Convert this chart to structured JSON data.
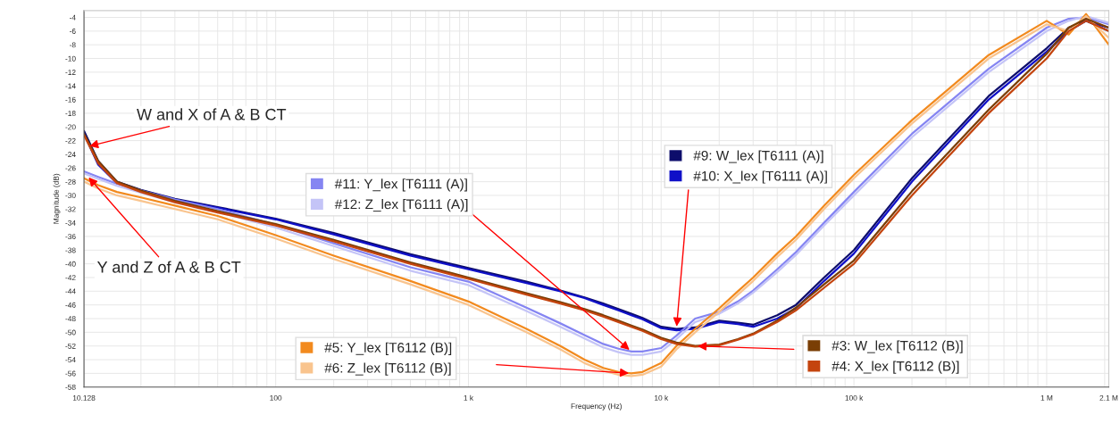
{
  "chart_data": {
    "type": "line",
    "xlabel": "Frequency (Hz)",
    "ylabel": "Magnitude (dB)",
    "x": [
      10.128,
      12,
      15,
      20,
      30,
      50,
      100,
      200,
      500,
      1000,
      2000,
      3000,
      4000,
      5000,
      6000,
      7000,
      8000,
      10000,
      12000,
      15000,
      20000,
      25000,
      30000,
      40000,
      50000,
      70000,
      100000,
      200000,
      500000,
      1000000,
      1300000,
      1600000,
      2100000
    ],
    "series": [
      {
        "name": "#9: W_lex [T6111 (A)]",
        "color": "#0d0d6b",
        "values": [
          -20.6,
          -25,
          -28,
          -29.2,
          -30.5,
          -31.7,
          -33.4,
          -35.5,
          -38.6,
          -40.6,
          -42.6,
          -43.9,
          -44.9,
          -45.8,
          -46.6,
          -47.3,
          -47.9,
          -49.2,
          -49.5,
          -49.3,
          -48.3,
          -48.6,
          -48.9,
          -47.5,
          -46,
          -42,
          -38,
          -27.5,
          -15.5,
          -8.5,
          -5.5,
          -4.5,
          -6
        ]
      },
      {
        "name": "#10: X_lex [T6111 (A)]",
        "color": "#1010c8",
        "values": [
          -21,
          -25.5,
          -28.2,
          -29.3,
          -30.6,
          -31.8,
          -33.5,
          -35.7,
          -38.8,
          -40.8,
          -42.8,
          -44,
          -45,
          -46,
          -46.8,
          -47.5,
          -48.1,
          -49.4,
          -49.7,
          -49.5,
          -48.5,
          -48.8,
          -49.2,
          -48,
          -46.5,
          -42.5,
          -38.5,
          -28,
          -16,
          -9,
          -6,
          -4.5,
          -5.5
        ]
      },
      {
        "name": "#11: Y_lex [T6111 (A)]",
        "color": "#8585f2",
        "values": [
          -26.5,
          -27.3,
          -28.3,
          -29.3,
          -30.6,
          -32,
          -34.3,
          -37,
          -40.5,
          -42.6,
          -46.4,
          -48.7,
          -50.4,
          -51.7,
          -52.4,
          -52.8,
          -52.8,
          -52.3,
          -50.5,
          -48,
          -47,
          -45.5,
          -43.9,
          -40.8,
          -38.3,
          -34,
          -29.5,
          -21,
          -11.5,
          -5.5,
          -4.2,
          -4,
          -5
        ]
      },
      {
        "name": "#12: Z_lex [T6111 (A)]",
        "color": "#c4c4f7",
        "values": [
          -26.8,
          -27.6,
          -28.6,
          -29.6,
          -31,
          -32.4,
          -34.7,
          -37.4,
          -41,
          -43.1,
          -46.9,
          -49.2,
          -50.9,
          -52.2,
          -52.9,
          -53.3,
          -53.3,
          -52.8,
          -51,
          -48.5,
          -47.3,
          -45.8,
          -44.2,
          -41.2,
          -38.7,
          -34.4,
          -30,
          -21.5,
          -12,
          -6,
          -4.5,
          -3.8,
          -4.8
        ]
      },
      {
        "name": "#5: Y_lex [T6112 (B)]",
        "color": "#f28a1e",
        "values": [
          -27.5,
          -28.5,
          -29.5,
          -30.3,
          -31.5,
          -33,
          -35.8,
          -38.8,
          -42.5,
          -45.5,
          -49.5,
          -52,
          -54,
          -55.2,
          -55.8,
          -56,
          -55.8,
          -54.5,
          -52,
          -49.5,
          -46.5,
          -44,
          -42,
          -38.5,
          -36,
          -31.5,
          -27,
          -19,
          -9.5,
          -4.5,
          -6.5,
          -3.5,
          -8
        ]
      },
      {
        "name": "#6: Z_lex [T6112 (B)]",
        "color": "#f9c48e",
        "values": [
          -28,
          -29,
          -30,
          -30.8,
          -32,
          -33.5,
          -36.3,
          -39.3,
          -43,
          -46,
          -50,
          -52.5,
          -54.5,
          -55.6,
          -56.2,
          -56.4,
          -56.2,
          -55,
          -52.5,
          -50,
          -47,
          -44.5,
          -42.5,
          -39,
          -36.5,
          -32,
          -27.5,
          -19.5,
          -10,
          -5,
          -6,
          -3.8,
          -7
        ]
      },
      {
        "name": "#3: W_lex [T6112 (B)]",
        "color": "#7a3e05",
        "values": [
          -21,
          -25,
          -28,
          -29.3,
          -30.8,
          -32.3,
          -34.2,
          -36.5,
          -39.8,
          -42,
          -44.3,
          -45.6,
          -46.6,
          -47.5,
          -48.3,
          -49,
          -49.6,
          -50.8,
          -51.5,
          -52,
          -51.8,
          -51,
          -50.2,
          -48.3,
          -46.4,
          -43,
          -39.5,
          -29.4,
          -17.5,
          -9.3,
          -5.5,
          -4.2,
          -5.5
        ]
      },
      {
        "name": "#4: X_lex [T6112 (B)]",
        "color": "#c4440e",
        "values": [
          -21.2,
          -25.3,
          -28.2,
          -29.5,
          -31,
          -32.5,
          -34.4,
          -36.7,
          -40,
          -42.2,
          -44.5,
          -45.8,
          -46.8,
          -47.7,
          -48.5,
          -49.2,
          -49.8,
          -51,
          -51.7,
          -52.1,
          -51.9,
          -51.1,
          -50.3,
          -48.5,
          -46.8,
          -43.5,
          -40,
          -30,
          -18,
          -10,
          -6,
          -4.5,
          -6
        ]
      }
    ],
    "log": "x",
    "xlim": [
      10.128,
      2100000
    ],
    "xticks": [
      {
        "value": 10.128,
        "label": "10.128"
      },
      100,
      {
        "value": 1000,
        "label": "1 k"
      },
      {
        "value": 10000,
        "label": "10 k"
      },
      {
        "value": 100000,
        "label": "100 k"
      },
      {
        "value": 1000000,
        "label": "1 M"
      },
      {
        "value": 2100000,
        "label": "2.1 M"
      }
    ],
    "ylim": [
      -58,
      -3
    ],
    "yticks": [
      -4,
      -6,
      -8,
      -10,
      -12,
      -14,
      -16,
      -18,
      -20,
      -22,
      -24,
      -26,
      -28,
      -30,
      -32,
      -34,
      -36,
      -38,
      -40,
      -42,
      -44,
      -46,
      -48,
      -50,
      -52,
      -54,
      -56,
      -58
    ],
    "grid": true,
    "legend": "bottom right",
    "marker": "none",
    "line_style": "solid",
    "annotations": [
      {
        "text": "W and X of A & B CT",
        "x": 10.5,
        "y": -22.9
      },
      {
        "text": "Y and Z of A & B CT",
        "x": 10.5,
        "y": -27.1
      }
    ]
  }
}
